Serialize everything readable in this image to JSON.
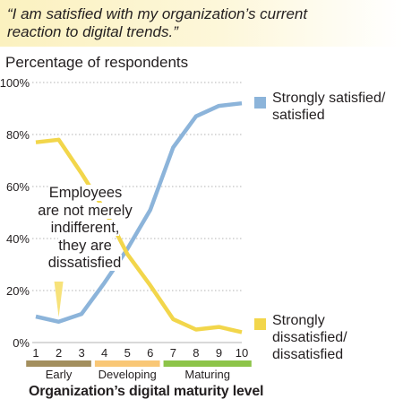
{
  "quote": "“I am satisfied with my organization’s current reaction to digital trends.”",
  "colors": {
    "satisfied": "#8cb4da",
    "dissatisfied": "#f2d64b",
    "early": "#a38f5e",
    "developing": "#f9c776",
    "maturing": "#8dc449",
    "quote_bg": "#fbf1bf"
  },
  "annotation": "Employees are not merely indifferent, they are dissatisfied",
  "chart_data": {
    "type": "line",
    "title": "",
    "ylabel": "Percentage of respondents",
    "xlabel": "Organization’s digital maturity level",
    "x": [
      1,
      2,
      3,
      4,
      5,
      6,
      7,
      8,
      9,
      10
    ],
    "xlim": [
      1,
      10
    ],
    "ylim": [
      0,
      100
    ],
    "yticks": [
      "0%",
      "20%",
      "40%",
      "60%",
      "80%",
      "100%"
    ],
    "grid": "y",
    "series": [
      {
        "name": "Strongly satisfied/ satisfied",
        "values": [
          10,
          8,
          11,
          23,
          36,
          51,
          75,
          87,
          91,
          92
        ]
      },
      {
        "name": "Strongly dissatisfied/ dissatisfied",
        "values": [
          77,
          78,
          65,
          51,
          34,
          22,
          9,
          5,
          6,
          4
        ]
      }
    ],
    "phases": [
      {
        "label": "Early",
        "from": 1,
        "to": 3
      },
      {
        "label": "Developing",
        "from": 4,
        "to": 6
      },
      {
        "label": "Maturing",
        "from": 7,
        "to": 10
      }
    ]
  }
}
